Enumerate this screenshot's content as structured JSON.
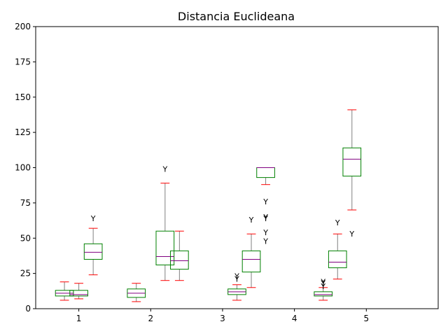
{
  "chart_data": {
    "type": "boxplot",
    "title": "Distancia Euclideana",
    "xlabel": "",
    "ylabel": "",
    "xlim": [
      0.4,
      6.0
    ],
    "ylim": [
      0,
      200
    ],
    "x_ticks": [
      1,
      2,
      3,
      4,
      5
    ],
    "x_tick_labels": [
      "1",
      "2",
      "3",
      "4",
      "5"
    ],
    "y_ticks": [
      0,
      25,
      50,
      75,
      100,
      125,
      150,
      175,
      200
    ],
    "y_tick_labels": [
      "0",
      "25",
      "50",
      "75",
      "100",
      "125",
      "150",
      "175",
      "200"
    ],
    "grid": false,
    "colors": {
      "box": "#008000",
      "median": "#800080",
      "whisker": "#808080",
      "cap": "#ff0000",
      "flier": "#000000"
    },
    "flier_marker": "Y",
    "boxes": [
      {
        "x": 0.8,
        "whislo": 6,
        "q1": 9,
        "med": 11,
        "q3": 13,
        "whishi": 19,
        "fliers": []
      },
      {
        "x": 1.0,
        "whislo": 7,
        "q1": 9,
        "med": 10,
        "q3": 13,
        "whishi": 18,
        "fliers": []
      },
      {
        "x": 1.2,
        "whislo": 24,
        "q1": 35,
        "med": 40,
        "q3": 46,
        "whishi": 57,
        "fliers": [
          64
        ]
      },
      {
        "x": 1.8,
        "whislo": 5,
        "q1": 8,
        "med": 11,
        "q3": 14,
        "whishi": 18,
        "fliers": []
      },
      {
        "x": 2.2,
        "whislo": 20,
        "q1": 31,
        "med": 37,
        "q3": 55,
        "whishi": 89,
        "fliers": [
          99
        ]
      },
      {
        "x": 2.4,
        "whislo": 20,
        "q1": 28,
        "med": 34,
        "q3": 41,
        "whishi": 55,
        "fliers": []
      },
      {
        "x": 3.2,
        "whislo": 6,
        "q1": 10,
        "med": 12,
        "q3": 14,
        "whishi": 17,
        "fliers": [
          21,
          23
        ]
      },
      {
        "x": 3.4,
        "whislo": 15,
        "q1": 26,
        "med": 35,
        "q3": 41,
        "whishi": 53,
        "fliers": [
          63
        ]
      },
      {
        "x": 3.6,
        "whislo": 88,
        "q1": 93,
        "med": 100,
        "q3": 100,
        "whishi": 100,
        "fliers": [
          48,
          54,
          64,
          65,
          76
        ]
      },
      {
        "x": 4.4,
        "whislo": 6,
        "q1": 9,
        "med": 10,
        "q3": 12,
        "whishi": 15,
        "fliers": [
          16,
          18,
          19
        ]
      },
      {
        "x": 4.6,
        "whislo": 21,
        "q1": 29,
        "med": 33,
        "q3": 41,
        "whishi": 53,
        "fliers": [
          61
        ]
      },
      {
        "x": 4.8,
        "whislo": 70,
        "q1": 94,
        "med": 106,
        "q3": 114,
        "whishi": 141,
        "fliers": [
          53
        ]
      }
    ]
  }
}
